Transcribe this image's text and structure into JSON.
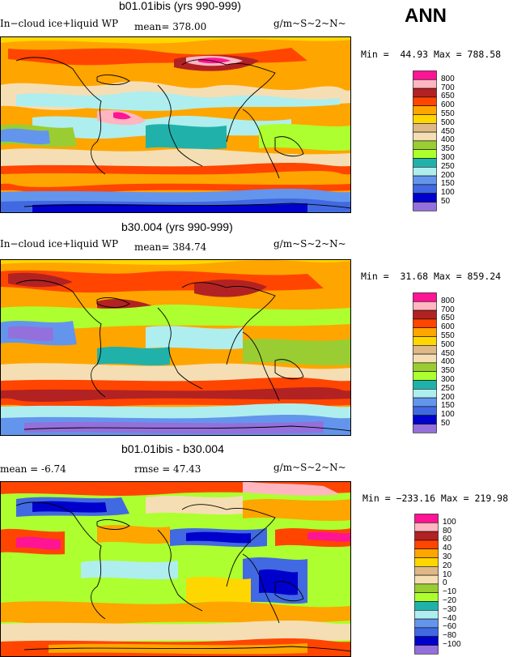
{
  "header": {
    "season": "ANN"
  },
  "panels": [
    {
      "id": "p1",
      "title": "b01.01ibis (yrs 990-999)",
      "left_label": "In−cloud ice+liquid WP",
      "mean_text": "mean= 378.00",
      "units": "g/m~S~2~N~",
      "minmax": "Min =  44.93 Max = 788.58",
      "levels": [
        "800",
        "700",
        "650",
        "600",
        "550",
        "500",
        "450",
        "400",
        "350",
        "300",
        "250",
        "200",
        "150",
        "100",
        "50"
      ],
      "colors": [
        "#ff1493",
        "#ffb6c1",
        "#b22222",
        "#ff4500",
        "#ffa500",
        "#ffd700",
        "#deb887",
        "#f5deb3",
        "#9acd32",
        "#adff2f",
        "#20b2aa",
        "#afeeee",
        "#6495ed",
        "#4169e1",
        "#0000cd",
        "#9370db"
      ]
    },
    {
      "id": "p2",
      "title": "b30.004 (yrs 990-999)",
      "left_label": "In−cloud ice+liquid WP",
      "mean_text": "mean= 384.74",
      "units": "g/m~S~2~N~",
      "minmax": "Min =  31.68 Max = 859.24",
      "levels": [
        "800",
        "700",
        "650",
        "600",
        "550",
        "500",
        "450",
        "400",
        "350",
        "300",
        "250",
        "200",
        "150",
        "100",
        "50"
      ],
      "colors": [
        "#ff1493",
        "#ffb6c1",
        "#b22222",
        "#ff4500",
        "#ffa500",
        "#ffd700",
        "#deb887",
        "#f5deb3",
        "#9acd32",
        "#adff2f",
        "#20b2aa",
        "#afeeee",
        "#6495ed",
        "#4169e1",
        "#0000cd",
        "#9370db"
      ]
    },
    {
      "id": "p3",
      "title": "b01.01ibis - b30.004",
      "mean_text": "mean =  -6.74",
      "rmse_text": "rmse =  47.43",
      "units": "g/m~S~2~N~",
      "minmax": "Min = −233.16 Max = 219.98",
      "levels": [
        "100",
        "80",
        "60",
        "40",
        "30",
        "20",
        "10",
        "0",
        "−10",
        "−20",
        "−30",
        "−40",
        "−60",
        "−80",
        "−100"
      ],
      "colors": [
        "#ff1493",
        "#ffb6c1",
        "#b22222",
        "#ff4500",
        "#ffa500",
        "#ffd700",
        "#deb887",
        "#f5deb3",
        "#9acd32",
        "#adff2f",
        "#20b2aa",
        "#afeeee",
        "#6495ed",
        "#4169e1",
        "#0000cd",
        "#9370db"
      ]
    }
  ]
}
